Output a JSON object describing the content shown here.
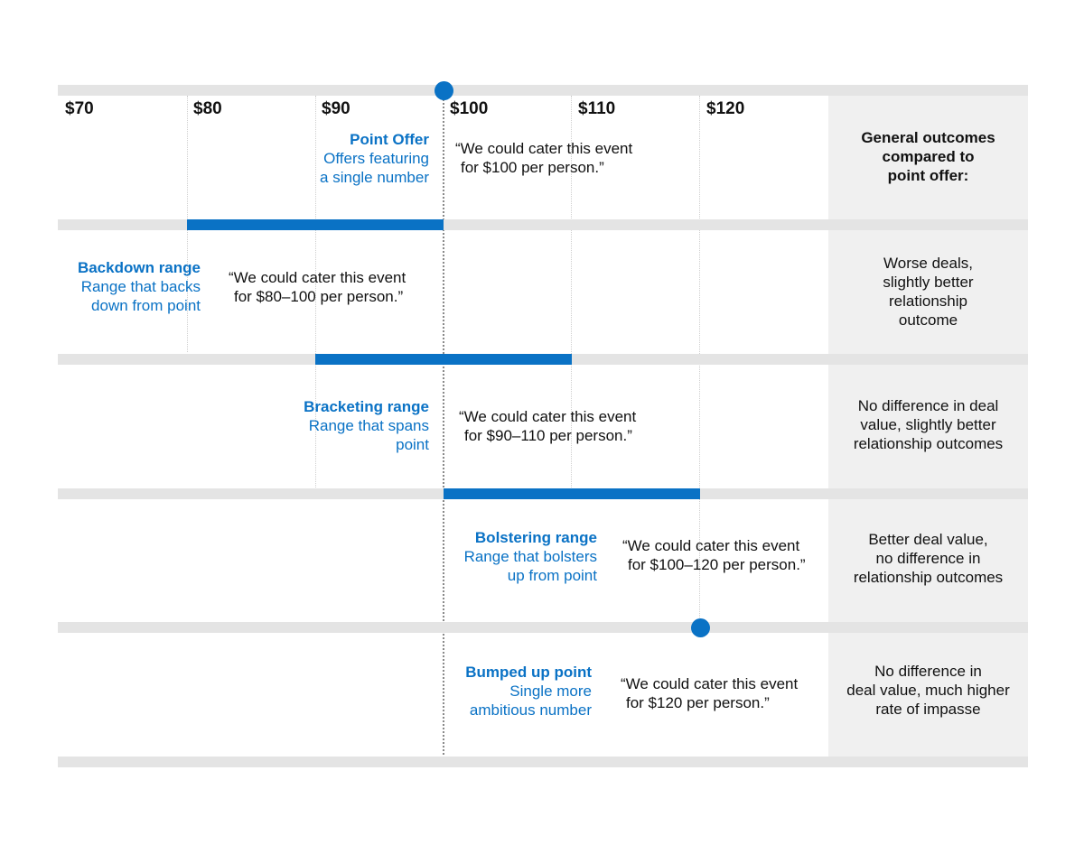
{
  "axis": {
    "ticks": [
      "$70",
      "$80",
      "$90",
      "$100",
      "$110",
      "$120"
    ]
  },
  "header": {
    "outcomes_title": [
      "General outcomes",
      "compared to",
      "point offer:"
    ]
  },
  "rows": [
    {
      "title": "Point Offer",
      "desc": [
        "Offers featuring",
        "a single number"
      ],
      "quote": [
        "“We could cater this event",
        "for $100 per person.”"
      ],
      "outcome": [],
      "type": "point",
      "value": 100
    },
    {
      "title": "Backdown range",
      "desc": [
        "Range that backs",
        "down from point"
      ],
      "quote": [
        "“We could cater this event",
        "for $80–100 per person.”"
      ],
      "outcome": [
        "Worse deals,",
        "slightly better",
        "relationship",
        "outcome"
      ],
      "type": "range",
      "range": [
        80,
        100
      ]
    },
    {
      "title": "Bracketing range",
      "desc": [
        "Range that spans",
        "point"
      ],
      "quote": [
        "“We could cater this event",
        "for $90–110 per person.”"
      ],
      "outcome": [
        "No difference in deal",
        "value, slightly better",
        "relationship outcomes"
      ],
      "type": "range",
      "range": [
        90,
        110
      ]
    },
    {
      "title": "Bolstering range",
      "desc": [
        "Range that bolsters",
        "up from point"
      ],
      "quote": [
        "“We could cater this event",
        "for $100–120 per person.”"
      ],
      "outcome": [
        "Better deal value,",
        "no difference in",
        "relationship outcomes"
      ],
      "type": "range",
      "range": [
        100,
        120
      ]
    },
    {
      "title": "Bumped up point",
      "desc": [
        "Single more",
        "ambitious number"
      ],
      "quote": [
        "“We could cater this event",
        "for $120 per person.”"
      ],
      "outcome": [
        "No difference in",
        "deal value, much higher",
        "rate of impasse"
      ],
      "type": "point",
      "value": 120
    }
  ],
  "colors": {
    "accent": "#0a72c5",
    "track": "#e4e4e4",
    "panel": "#f0f0f0"
  }
}
